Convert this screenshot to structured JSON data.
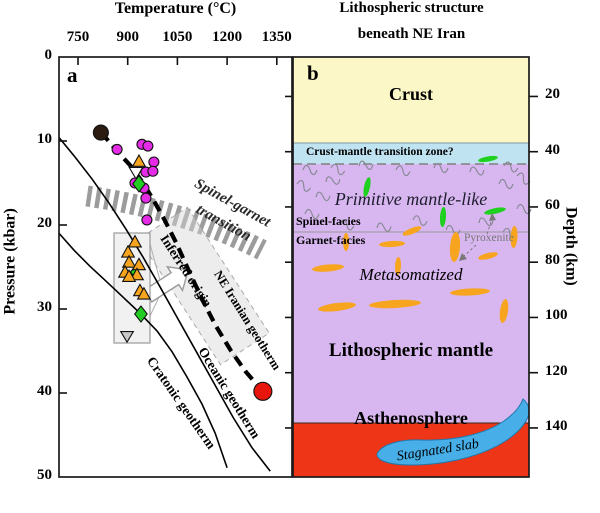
{
  "colors": {
    "crust": "#FBF7C6",
    "transition_zone": "#C0E3F2",
    "mantle": "#D8B7F0",
    "asthenosphere": "#EF3517",
    "slab": "#47AEE8",
    "green_pyroxenite": "#1ED11E",
    "orange_metasomatized": "#F7A41E",
    "magenta_marker": "#E62BE6",
    "dark_marker": "#2B1B10",
    "red_marker": "#E8150D",
    "hatch_band": "#9C9C9C",
    "squiggle": "#8A8A96"
  },
  "panel_a": {
    "label": "a",
    "x_axis_title": "Temperature (°C)",
    "y_axis_title": "Pressure (kbar)",
    "annotations": {
      "spinel_garnet_1": "Spinel-garnet",
      "spinel_garnet_2": "transition",
      "inferred_origin": "Inferred origin",
      "ne_iranian_geotherm": "NE Iranian geotherm",
      "oceanic_geotherm": "Oceanic geotherm",
      "cratonic_geotherm": "Cratonic geotherm"
    }
  },
  "panel_b": {
    "label": "b",
    "title_line1": "Lithospheric structure",
    "title_line2": "beneath NE Iran",
    "y_axis_title": "Depth (km)",
    "layers": {
      "crust": "Crust",
      "transition_zone": "Crust-mantle transition zone?",
      "primitive_mantle": "Primitive mantle-like",
      "spinel_facies": "Spinel-facies",
      "garnet_facies": "Garnet-facies",
      "pyroxenite": "Pyroxenite",
      "metasomatized": "Metasomatized",
      "lithospheric_mantle": "Lithospheric mantle",
      "asthenosphere": "Asthenosphere",
      "stagnated_slab": "Stagnated slab"
    }
  },
  "chart_data": {
    "type": "scatter",
    "xlabel": "Temperature (°C)",
    "ylabel": "Pressure (kbar)",
    "y2label": "Depth (km)",
    "x_ticks": [
      750,
      900,
      1050,
      1200,
      1350
    ],
    "y_ticks": [
      0,
      10,
      20,
      30,
      40,
      50
    ],
    "depth_ticks_km": [
      20,
      40,
      60,
      80,
      100,
      120,
      140
    ],
    "xlim": [
      693,
      1395
    ],
    "ylim": [
      0,
      50
    ],
    "y_inverted": true,
    "series": [
      {
        "name": "Cratonic geotherm",
        "style": "solid",
        "points": [
          [
            693,
            21.0
          ],
          [
            738,
            23.0
          ],
          [
            786,
            24.9
          ],
          [
            835,
            26.7
          ],
          [
            886,
            28.6
          ],
          [
            937,
            30.5
          ],
          [
            988,
            32.6
          ],
          [
            1034,
            35.1
          ],
          [
            1079,
            38.1
          ],
          [
            1124,
            41.3
          ],
          [
            1164,
            44.8
          ],
          [
            1200,
            48.9
          ]
        ]
      },
      {
        "name": "Oceanic geotherm",
        "style": "solid",
        "points": [
          [
            693,
            9.6
          ],
          [
            741,
            11.9
          ],
          [
            792,
            14.5
          ],
          [
            844,
            17.4
          ],
          [
            895,
            20.5
          ],
          [
            946,
            23.8
          ],
          [
            998,
            27.4
          ],
          [
            1049,
            31.0
          ],
          [
            1103,
            34.8
          ],
          [
            1160,
            38.8
          ],
          [
            1218,
            42.9
          ],
          [
            1275,
            46.5
          ],
          [
            1330,
            49.3
          ]
        ]
      },
      {
        "name": "NE Iranian geotherm",
        "style": "dashed",
        "points": [
          [
            819,
            9.0
          ],
          [
            847,
            10.2
          ],
          [
            877,
            11.6
          ],
          [
            910,
            13.0
          ],
          [
            943,
            14.8
          ],
          [
            976,
            16.9
          ],
          [
            1010,
            19.3
          ],
          [
            1046,
            22.1
          ],
          [
            1085,
            25.5
          ],
          [
            1124,
            28.8
          ],
          [
            1166,
            32.0
          ],
          [
            1212,
            35.0
          ],
          [
            1257,
            37.5
          ],
          [
            1308,
            39.8
          ]
        ]
      }
    ],
    "markers": [
      {
        "name": "open-triangle",
        "shape": "triangle-down",
        "size": 7.5,
        "color": "#FFFFFF",
        "points": [
          [
            925,
            13.7
          ]
        ]
      },
      {
        "name": "magenta-circles",
        "shape": "circle",
        "size": 5,
        "color": "#E62BE6",
        "points": [
          [
            868,
            11.0
          ],
          [
            943,
            10.4
          ],
          [
            961,
            10.6
          ],
          [
            979,
            12.5
          ],
          [
            955,
            13.7
          ],
          [
            976,
            13.6
          ],
          [
            922,
            15.0
          ],
          [
            949,
            15.6
          ],
          [
            955,
            16.8
          ],
          [
            958,
            19.4
          ]
        ]
      },
      {
        "name": "green-diamond-small",
        "shape": "diamond",
        "size": 4.5,
        "color": "#1ED11E",
        "points": [
          [
            919,
            25.6
          ]
        ]
      },
      {
        "name": "orange-triangles",
        "shape": "triangle-up",
        "size": 7,
        "color": "#F7A41E",
        "points": [
          [
            934,
            12.5
          ],
          [
            922,
            22.1
          ],
          [
            901,
            23.3
          ],
          [
            904,
            24.5
          ],
          [
            934,
            24.8
          ],
          [
            892,
            25.7
          ],
          [
            928,
            26.0
          ],
          [
            904,
            26.2
          ],
          [
            937,
            27.9
          ],
          [
            949,
            28.3
          ]
        ]
      },
      {
        "name": "gray-triangle",
        "shape": "triangle-down",
        "size": 7,
        "color": "#C9C9C9",
        "points": [
          [
            898,
            33.2
          ]
        ]
      },
      {
        "name": "green-diamonds",
        "shape": "diamond",
        "size": 8,
        "color": "#22CC22",
        "points": [
          [
            934,
            15.1
          ],
          [
            940,
            30.6
          ]
        ]
      },
      {
        "name": "dark-circle",
        "shape": "circle",
        "size": 7.5,
        "color": "#2B1B10",
        "points": [
          [
            819,
            9.0
          ]
        ]
      },
      {
        "name": "red-circle",
        "shape": "circle",
        "size": 9,
        "color": "#E8150D",
        "points": [
          [
            1308,
            39.8
          ]
        ]
      }
    ]
  }
}
